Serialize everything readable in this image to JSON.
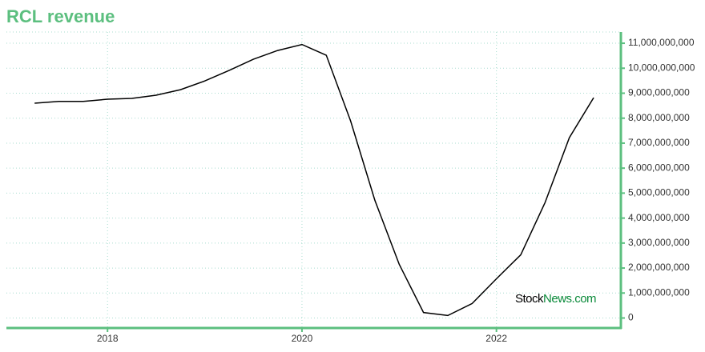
{
  "chart_data": {
    "type": "line",
    "title": "RCL revenue",
    "x": [
      2017.25,
      2017.5,
      2017.75,
      2018,
      2018.25,
      2018.5,
      2018.75,
      2019,
      2019.25,
      2019.5,
      2019.75,
      2020,
      2020.25,
      2020.5,
      2020.75,
      2021,
      2021.25,
      2021.5,
      2021.75,
      2022,
      2022.25,
      2022.5,
      2022.75,
      2023
    ],
    "series": [
      {
        "name": "RCL revenue",
        "color": "#000000",
        "values": [
          8600000000,
          8670000000,
          8670000000,
          8760000000,
          8790000000,
          8920000000,
          9140000000,
          9490000000,
          9910000000,
          10360000000,
          10710000000,
          10950000000,
          10520000000,
          7890000000,
          4710000000,
          2150000000,
          220000000,
          100000000,
          580000000,
          1570000000,
          2530000000,
          4620000000,
          7220000000,
          8820000000
        ]
      }
    ],
    "xlim": [
      2016.96,
      2023.28
    ],
    "xticks": [
      2018,
      2020,
      2022
    ],
    "ylim": [
      -400000000,
      11450000000
    ],
    "yticks": [
      0,
      {
        "value": 1000000000,
        "label": "1,000,000,000"
      },
      {
        "value": 2000000000,
        "label": "2,000,000,000"
      },
      {
        "value": 3000000000,
        "label": "3,000,000,000"
      },
      {
        "value": 4000000000,
        "label": "4,000,000,000"
      },
      {
        "value": 5000000000,
        "label": "5,000,000,000"
      },
      {
        "value": 6000000000,
        "label": "6,000,000,000"
      },
      {
        "value": 7000000000,
        "label": "7,000,000,000"
      },
      {
        "value": 8000000000,
        "label": "8,000,000,000"
      },
      {
        "value": 9000000000,
        "label": "9,000,000,000"
      },
      {
        "value": 10000000000,
        "label": "10,000,000,000"
      },
      {
        "value": 11000000000,
        "label": "11,000,000,000"
      }
    ],
    "grid": true,
    "axis_color": "#5cbf7f",
    "grid_color": "#a8dccf",
    "watermark": {
      "prefix": "Stock",
      "suffix": "News.com"
    }
  }
}
